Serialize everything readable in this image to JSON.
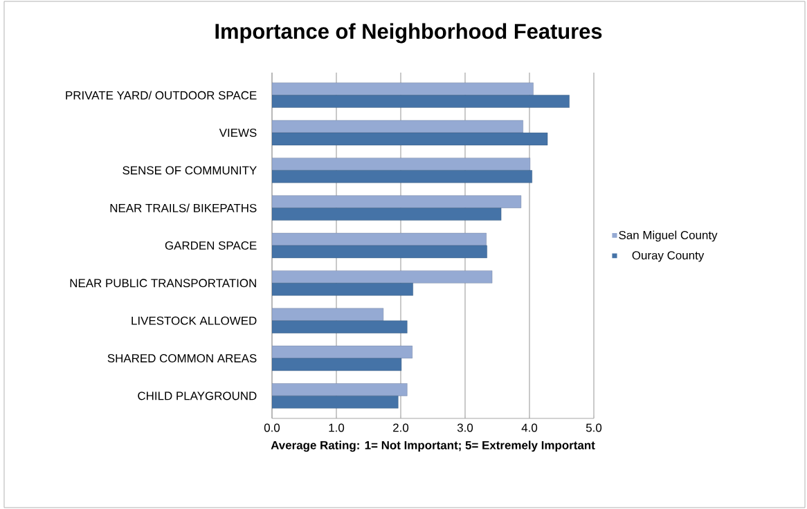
{
  "chart_data": {
    "type": "bar",
    "orientation": "horizontal",
    "title": "Importance of Neighborhood Features",
    "xlabel": "Average Rating: 1= Not Important; 5= Extremely Important",
    "categories": [
      "PRIVATE YARD/ OUTDOOR SPACE",
      "VIEWS",
      "SENSE OF COMMUNITY",
      "NEAR TRAILS/ BIKEPATHS",
      "GARDEN SPACE",
      "NEAR PUBLIC TRANSPORTATION",
      "LIVESTOCK ALLOWED",
      "SHARED COMMON AREAS",
      "CHILD PLAYGROUND"
    ],
    "series": [
      {
        "name": "San Miguel County",
        "color": "#95aad3",
        "values": [
          4.06,
          3.9,
          4.01,
          3.87,
          3.33,
          3.42,
          1.73,
          2.18,
          2.1
        ]
      },
      {
        "name": "Ouray County",
        "color": "#4573a7",
        "values": [
          4.62,
          4.28,
          4.04,
          3.56,
          3.34,
          2.19,
          2.1,
          2.01,
          1.96
        ]
      }
    ],
    "xlim": [
      0,
      5
    ],
    "xticks": [
      {
        "value": 0,
        "label": "0.0"
      },
      {
        "value": 1,
        "label": "1.0"
      },
      {
        "value": 2,
        "label": "2.0"
      },
      {
        "value": 3,
        "label": "3.0"
      },
      {
        "value": 4,
        "label": "4.0"
      },
      {
        "value": 5,
        "label": "5.0"
      }
    ],
    "grid": "x",
    "legend": "right"
  }
}
